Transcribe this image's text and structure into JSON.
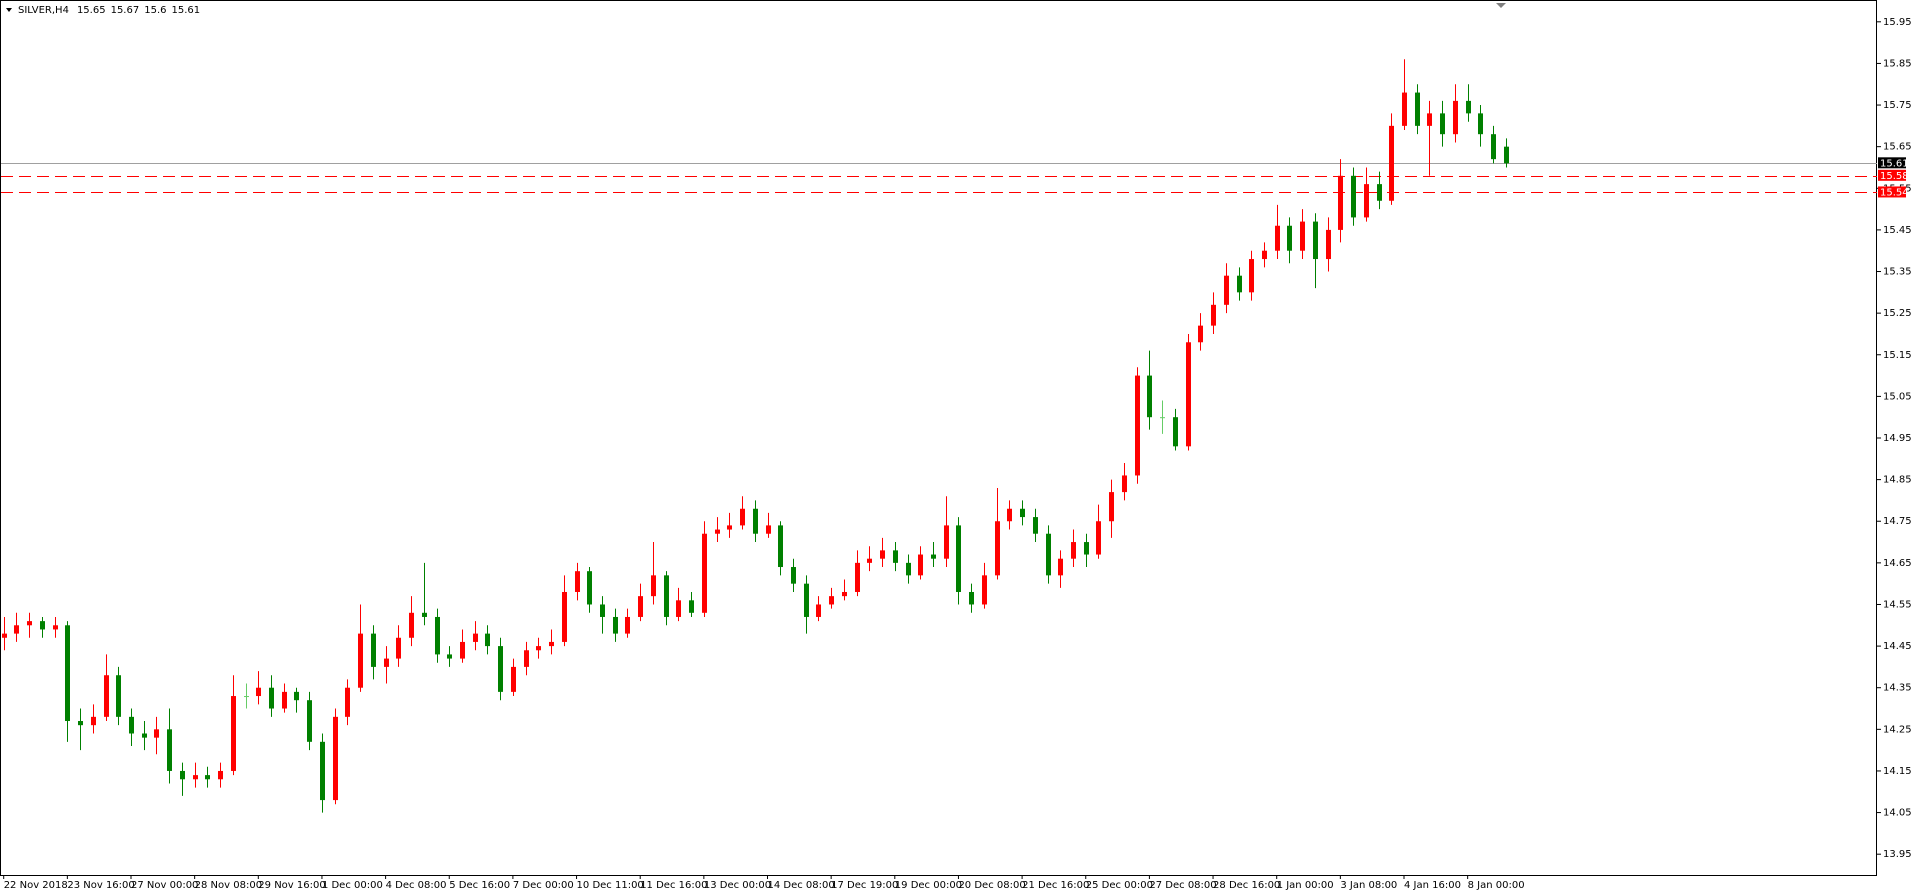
{
  "header": {
    "symbol": "SILVER,H4"
  },
  "chart_data": {
    "type": "candlestick",
    "up_color": "#ff0000",
    "down_color": "#008000",
    "ylim": [
      13.9,
      16.0
    ],
    "yticks": [
      15.95,
      15.85,
      15.75,
      15.65,
      15.55,
      15.45,
      15.35,
      15.25,
      15.15,
      15.05,
      14.95,
      14.85,
      14.75,
      14.65,
      14.55,
      14.45,
      14.35,
      14.25,
      14.15,
      14.05,
      13.95
    ],
    "lines": [
      {
        "value": 15.61,
        "color": "#a0a0a0",
        "style": "solid",
        "label_color": "#000000"
      },
      {
        "value": 15.58,
        "color": "#ff0000",
        "style": "dashed",
        "label_color": "#ff0000"
      },
      {
        "value": 15.54,
        "color": "#ff0000",
        "style": "dashed",
        "label_color": "#ff0000"
      }
    ],
    "categories": [
      "22 Nov 2018",
      null,
      null,
      null,
      null,
      "23 Nov 16:00",
      null,
      null,
      null,
      null,
      "27 Nov 00:00",
      null,
      null,
      null,
      null,
      "28 Nov 08:00",
      null,
      null,
      null,
      null,
      "29 Nov 16:00",
      null,
      null,
      null,
      null,
      "1 Dec 00:00",
      null,
      null,
      null,
      null,
      "4 Dec 08:00",
      null,
      null,
      null,
      null,
      "5 Dec 16:00",
      null,
      null,
      null,
      null,
      "7 Dec 00:00",
      null,
      null,
      null,
      null,
      "10 Dec 11:00",
      null,
      null,
      null,
      null,
      "11 Dec 16:00",
      null,
      null,
      null,
      null,
      "13 Dec 00:00",
      null,
      null,
      null,
      null,
      "14 Dec 08:00",
      null,
      null,
      null,
      null,
      "17 Dec 19:00",
      null,
      null,
      null,
      null,
      "19 Dec 00:00",
      null,
      null,
      null,
      null,
      "20 Dec 08:00",
      null,
      null,
      null,
      null,
      "21 Dec 16:00",
      null,
      null,
      null,
      null,
      "25 Dec 00:00",
      null,
      null,
      null,
      null,
      "27 Dec 08:00",
      null,
      null,
      null,
      null,
      "28 Dec 16:00",
      null,
      null,
      null,
      null,
      "1 Jan 00:00",
      null,
      null,
      null,
      null,
      "3 Jan 08:00",
      null,
      null,
      null,
      null,
      "4 Jan 16:00",
      null,
      null,
      null,
      null,
      "8 Jan 00:00",
      null,
      null,
      null
    ],
    "candles": [
      [
        14.47,
        14.52,
        14.44,
        14.48
      ],
      [
        14.48,
        14.53,
        14.46,
        14.5
      ],
      [
        14.5,
        14.53,
        14.47,
        14.51
      ],
      [
        14.51,
        14.52,
        14.47,
        14.49
      ],
      [
        14.49,
        14.52,
        14.47,
        14.5
      ],
      [
        14.5,
        14.51,
        14.22,
        14.27
      ],
      [
        14.27,
        14.3,
        14.2,
        14.26
      ],
      [
        14.26,
        14.31,
        14.24,
        14.28
      ],
      [
        14.28,
        14.43,
        14.27,
        14.38
      ],
      [
        14.38,
        14.4,
        14.26,
        14.28
      ],
      [
        14.28,
        14.3,
        14.21,
        14.24
      ],
      [
        14.24,
        14.27,
        14.2,
        14.23
      ],
      [
        14.23,
        14.28,
        14.19,
        14.25
      ],
      [
        14.25,
        14.3,
        14.12,
        14.15
      ],
      [
        14.15,
        14.17,
        14.09,
        14.13
      ],
      [
        14.13,
        14.17,
        14.11,
        14.14
      ],
      [
        14.14,
        14.16,
        14.11,
        14.13
      ],
      [
        14.13,
        14.17,
        14.11,
        14.15
      ],
      [
        14.15,
        14.38,
        14.14,
        14.33
      ],
      [
        14.33,
        14.36,
        14.3,
        14.33
      ],
      [
        14.33,
        14.39,
        14.31,
        14.35
      ],
      [
        14.35,
        14.38,
        14.28,
        14.3
      ],
      [
        14.3,
        14.36,
        14.29,
        14.34
      ],
      [
        14.34,
        14.35,
        14.29,
        14.32
      ],
      [
        14.32,
        14.34,
        14.2,
        14.22
      ],
      [
        14.22,
        14.24,
        14.05,
        14.08
      ],
      [
        14.08,
        14.3,
        14.07,
        14.28
      ],
      [
        14.28,
        14.37,
        14.26,
        14.35
      ],
      [
        14.35,
        14.55,
        14.34,
        14.48
      ],
      [
        14.48,
        14.5,
        14.37,
        14.4
      ],
      [
        14.4,
        14.45,
        14.36,
        14.42
      ],
      [
        14.42,
        14.5,
        14.4,
        14.47
      ],
      [
        14.47,
        14.57,
        14.45,
        14.53
      ],
      [
        14.53,
        14.65,
        14.5,
        14.52
      ],
      [
        14.52,
        14.54,
        14.41,
        14.43
      ],
      [
        14.43,
        14.45,
        14.4,
        14.42
      ],
      [
        14.42,
        14.49,
        14.41,
        14.46
      ],
      [
        14.46,
        14.51,
        14.44,
        14.48
      ],
      [
        14.48,
        14.5,
        14.43,
        14.45
      ],
      [
        14.45,
        14.47,
        14.32,
        14.34
      ],
      [
        14.34,
        14.42,
        14.33,
        14.4
      ],
      [
        14.4,
        14.46,
        14.38,
        14.44
      ],
      [
        14.44,
        14.47,
        14.42,
        14.45
      ],
      [
        14.45,
        14.49,
        14.43,
        14.46
      ],
      [
        14.46,
        14.62,
        14.45,
        14.58
      ],
      [
        14.58,
        14.65,
        14.56,
        14.63
      ],
      [
        14.63,
        14.64,
        14.53,
        14.55
      ],
      [
        14.55,
        14.57,
        14.48,
        14.52
      ],
      [
        14.52,
        14.54,
        14.46,
        14.48
      ],
      [
        14.48,
        14.54,
        14.47,
        14.52
      ],
      [
        14.52,
        14.6,
        14.51,
        14.57
      ],
      [
        14.57,
        14.7,
        14.55,
        14.62
      ],
      [
        14.62,
        14.63,
        14.5,
        14.52
      ],
      [
        14.52,
        14.59,
        14.51,
        14.56
      ],
      [
        14.56,
        14.58,
        14.52,
        14.53
      ],
      [
        14.53,
        14.75,
        14.52,
        14.72
      ],
      [
        14.72,
        14.76,
        14.7,
        14.73
      ],
      [
        14.73,
        14.77,
        14.71,
        14.74
      ],
      [
        14.74,
        14.81,
        14.73,
        14.78
      ],
      [
        14.78,
        14.8,
        14.7,
        14.72
      ],
      [
        14.72,
        14.77,
        14.71,
        14.74
      ],
      [
        14.74,
        14.75,
        14.62,
        14.64
      ],
      [
        14.64,
        14.66,
        14.58,
        14.6
      ],
      [
        14.6,
        14.62,
        14.48,
        14.52
      ],
      [
        14.52,
        14.57,
        14.51,
        14.55
      ],
      [
        14.55,
        14.59,
        14.54,
        14.57
      ],
      [
        14.57,
        14.61,
        14.56,
        14.58
      ],
      [
        14.58,
        14.68,
        14.57,
        14.65
      ],
      [
        14.65,
        14.69,
        14.63,
        14.66
      ],
      [
        14.66,
        14.71,
        14.64,
        14.68
      ],
      [
        14.68,
        14.7,
        14.63,
        14.65
      ],
      [
        14.65,
        14.67,
        14.6,
        14.62
      ],
      [
        14.62,
        14.69,
        14.61,
        14.67
      ],
      [
        14.67,
        14.7,
        14.64,
        14.66
      ],
      [
        14.66,
        14.81,
        14.64,
        14.74
      ],
      [
        14.74,
        14.76,
        14.55,
        14.58
      ],
      [
        14.58,
        14.6,
        14.53,
        14.55
      ],
      [
        14.55,
        14.65,
        14.54,
        14.62
      ],
      [
        14.62,
        14.83,
        14.61,
        14.75
      ],
      [
        14.75,
        14.8,
        14.73,
        14.78
      ],
      [
        14.78,
        14.8,
        14.74,
        14.76
      ],
      [
        14.76,
        14.78,
        14.7,
        14.72
      ],
      [
        14.72,
        14.74,
        14.6,
        14.62
      ],
      [
        14.62,
        14.68,
        14.59,
        14.66
      ],
      [
        14.66,
        14.73,
        14.64,
        14.7
      ],
      [
        14.7,
        14.72,
        14.64,
        14.67
      ],
      [
        14.67,
        14.79,
        14.66,
        14.75
      ],
      [
        14.75,
        14.85,
        14.71,
        14.82
      ],
      [
        14.82,
        14.89,
        14.8,
        14.86
      ],
      [
        14.86,
        15.12,
        14.84,
        15.1
      ],
      [
        15.1,
        15.16,
        14.97,
        15.0
      ],
      [
        15.0,
        15.04,
        14.96,
        15.0
      ],
      [
        15.0,
        15.02,
        14.92,
        14.93
      ],
      [
        14.93,
        15.2,
        14.92,
        15.18
      ],
      [
        15.18,
        15.25,
        15.16,
        15.22
      ],
      [
        15.22,
        15.3,
        15.2,
        15.27
      ],
      [
        15.27,
        15.37,
        15.25,
        15.34
      ],
      [
        15.34,
        15.36,
        15.28,
        15.3
      ],
      [
        15.3,
        15.4,
        15.28,
        15.38
      ],
      [
        15.38,
        15.42,
        15.36,
        15.4
      ],
      [
        15.4,
        15.51,
        15.38,
        15.46
      ],
      [
        15.46,
        15.48,
        15.37,
        15.4
      ],
      [
        15.4,
        15.5,
        15.38,
        15.47
      ],
      [
        15.47,
        15.49,
        15.31,
        15.38
      ],
      [
        15.38,
        15.48,
        15.35,
        15.45
      ],
      [
        15.45,
        15.62,
        15.42,
        15.58
      ],
      [
        15.58,
        15.6,
        15.46,
        15.48
      ],
      [
        15.48,
        15.6,
        15.47,
        15.56
      ],
      [
        15.56,
        15.59,
        15.5,
        15.52
      ],
      [
        15.52,
        15.73,
        15.51,
        15.7
      ],
      [
        15.7,
        15.86,
        15.69,
        15.78
      ],
      [
        15.78,
        15.8,
        15.68,
        15.7
      ],
      [
        15.7,
        15.76,
        15.58,
        15.73
      ],
      [
        15.73,
        15.76,
        15.65,
        15.68
      ],
      [
        15.68,
        15.8,
        15.66,
        15.76
      ],
      [
        15.76,
        15.8,
        15.71,
        15.73
      ],
      [
        15.73,
        15.75,
        15.65,
        15.68
      ],
      [
        15.68,
        15.7,
        15.61,
        15.62
      ],
      [
        15.65,
        15.67,
        15.6,
        15.61
      ]
    ]
  }
}
